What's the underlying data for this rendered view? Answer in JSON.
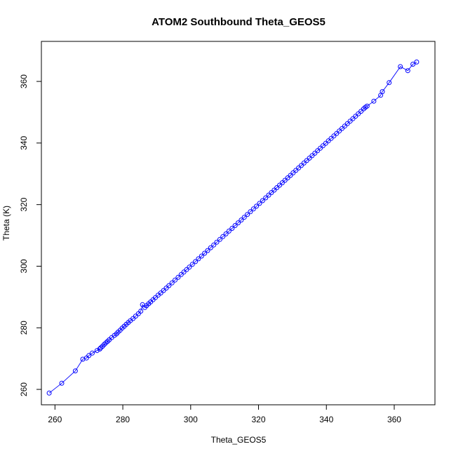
{
  "chart_data": {
    "type": "scatter",
    "title": "ATOM2 Southbound Theta_GEOS5",
    "xlabel": "Theta_GEOS5",
    "ylabel": "Theta (K)",
    "xlim": [
      256,
      372
    ],
    "ylim": [
      255,
      373
    ],
    "xticks": [
      260,
      280,
      300,
      320,
      340,
      360
    ],
    "yticks": [
      260,
      280,
      300,
      320,
      340,
      360
    ],
    "grid": false,
    "legend": "none",
    "series": [
      {
        "color": "#0000ff",
        "marker": "open-circle",
        "connected": true,
        "x": [
          258.3,
          262,
          266,
          268.2,
          269.3,
          270.0,
          271,
          272.4,
          273.2,
          273.5,
          274.0,
          274.5,
          275.0,
          275.5,
          276.0,
          276.7,
          277.5,
          278.1,
          278.6,
          279.2,
          279.8,
          280.4,
          281.0,
          281.6,
          282.2,
          283.0,
          283.8,
          284.6,
          285.3,
          285.8,
          286.5,
          287.0,
          287.6,
          288.2,
          288.9,
          289.6,
          290.4,
          291.2,
          292.0,
          292.8,
          293.6,
          294.5,
          295.4,
          296.3,
          297.2,
          298.0,
          298.8,
          299.6,
          300.5,
          301.4,
          302.3,
          303.2,
          304.1,
          305.0,
          305.9,
          306.8,
          307.7,
          308.6,
          309.5,
          310.4,
          311.3,
          312.2,
          313.1,
          314.0,
          314.9,
          315.8,
          316.7,
          317.6,
          318.5,
          319.4,
          320.3,
          321.2,
          322.1,
          323.0,
          323.8,
          324.6,
          325.4,
          326.2,
          327.0,
          327.8,
          328.6,
          329.4,
          330.2,
          331.0,
          331.8,
          332.6,
          333.4,
          334.2,
          335.0,
          335.8,
          336.6,
          337.4,
          338.2,
          339.0,
          339.8,
          340.6,
          341.4,
          342.2,
          343.0,
          343.8,
          344.6,
          345.4,
          346.2,
          347.0,
          347.8,
          348.6,
          349.4,
          350.2,
          351.0,
          351.5,
          352.0,
          354.0,
          356.0,
          356.5,
          358.5,
          361.8,
          364.0,
          365.5,
          366.6
        ],
        "y": [
          258.8,
          262,
          266,
          269.8,
          270.2,
          271.0,
          271.8,
          272.6,
          273.1,
          273.5,
          274.0,
          274.6,
          275.1,
          275.6,
          276.1,
          276.8,
          277.5,
          278.0,
          278.6,
          279.2,
          279.9,
          280.5,
          281.1,
          281.7,
          282.3,
          283.0,
          283.8,
          284.6,
          285.4,
          287.5,
          286.6,
          287.2,
          287.8,
          288.4,
          289.1,
          289.8,
          290.6,
          291.3,
          292.1,
          292.9,
          293.7,
          294.6,
          295.5,
          296.4,
          297.3,
          298.1,
          298.9,
          299.7,
          300.6,
          301.5,
          302.4,
          303.3,
          304.2,
          305.1,
          306.0,
          306.9,
          307.8,
          308.7,
          309.6,
          310.5,
          311.4,
          312.3,
          313.2,
          314.1,
          315.0,
          315.9,
          316.8,
          317.7,
          318.6,
          319.5,
          320.4,
          321.3,
          322.2,
          323.1,
          323.9,
          324.7,
          325.5,
          326.3,
          327.1,
          327.9,
          328.7,
          329.5,
          330.3,
          331.1,
          331.9,
          332.7,
          333.5,
          334.3,
          335.1,
          335.9,
          336.7,
          337.5,
          338.3,
          339.1,
          339.9,
          340.7,
          341.5,
          342.3,
          343.1,
          343.9,
          344.7,
          345.5,
          346.3,
          347.1,
          347.9,
          348.7,
          349.5,
          350.3,
          351.1,
          351.6,
          352.0,
          353.6,
          355.5,
          356.7,
          359.6,
          364.8,
          363.5,
          365.6,
          366.3
        ]
      }
    ]
  }
}
